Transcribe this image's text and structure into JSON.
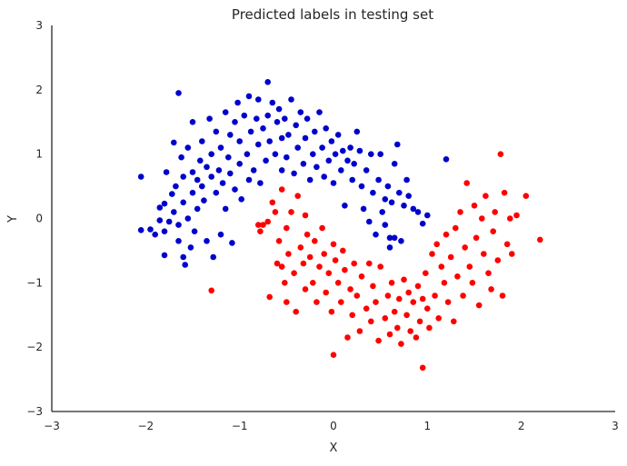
{
  "chart_data": {
    "type": "scatter",
    "title": "Predicted labels in testing set",
    "xlabel": "X",
    "ylabel": "Y",
    "xlim": [
      -3,
      3
    ],
    "ylim": [
      -3,
      3
    ],
    "xticks": [
      "−3",
      "−2",
      "−1",
      "0",
      "1",
      "2",
      "3"
    ],
    "yticks": [
      "−3",
      "−2",
      "−1",
      "0",
      "1",
      "2",
      "3"
    ],
    "grid": false,
    "legend": "none",
    "series": [
      {
        "color": "#0000cc",
        "points": [
          [
            -2.05,
            0.65
          ],
          [
            -2.05,
            -0.18
          ],
          [
            -1.95,
            -0.17
          ],
          [
            -1.9,
            -0.25
          ],
          [
            -1.85,
            0.17
          ],
          [
            -1.85,
            -0.03
          ],
          [
            -1.8,
            0.23
          ],
          [
            -1.8,
            -0.2
          ],
          [
            -1.8,
            -0.57
          ],
          [
            -1.78,
            0.72
          ],
          [
            -1.75,
            -0.05
          ],
          [
            -1.72,
            0.38
          ],
          [
            -1.7,
            0.1
          ],
          [
            -1.7,
            1.18
          ],
          [
            -1.68,
            0.5
          ],
          [
            -1.65,
            -0.35
          ],
          [
            -1.65,
            -0.1
          ],
          [
            -1.65,
            1.95
          ],
          [
            -1.62,
            0.95
          ],
          [
            -1.6,
            0.65
          ],
          [
            -1.6,
            0.25
          ],
          [
            -1.6,
            -0.6
          ],
          [
            -1.58,
            -0.72
          ],
          [
            -1.55,
            1.1
          ],
          [
            -1.55,
            0.0
          ],
          [
            -1.52,
            -0.45
          ],
          [
            -1.5,
            0.72
          ],
          [
            -1.5,
            0.4
          ],
          [
            -1.5,
            1.5
          ],
          [
            -1.48,
            -0.2
          ],
          [
            -1.45,
            0.6
          ],
          [
            -1.45,
            0.15
          ],
          [
            -1.42,
            0.9
          ],
          [
            -1.4,
            0.5
          ],
          [
            -1.4,
            1.2
          ],
          [
            -1.38,
            0.28
          ],
          [
            -1.35,
            0.8
          ],
          [
            -1.35,
            -0.35
          ],
          [
            -1.32,
            1.55
          ],
          [
            -1.3,
            0.65
          ],
          [
            -1.3,
            1.0
          ],
          [
            -1.28,
            -0.6
          ],
          [
            -1.25,
            0.4
          ],
          [
            -1.25,
            1.35
          ],
          [
            -1.22,
            0.75
          ],
          [
            -1.2,
            1.1
          ],
          [
            -1.2,
            -0.25
          ],
          [
            -1.18,
            0.55
          ],
          [
            -1.15,
            1.65
          ],
          [
            -1.15,
            0.15
          ],
          [
            -1.12,
            0.95
          ],
          [
            -1.1,
            1.3
          ],
          [
            -1.1,
            0.7
          ],
          [
            -1.08,
            -0.38
          ],
          [
            -1.05,
            0.45
          ],
          [
            -1.05,
            1.5
          ],
          [
            -1.02,
            1.8
          ],
          [
            -1.0,
            0.85
          ],
          [
            -1.0,
            1.2
          ],
          [
            -0.98,
            0.3
          ],
          [
            -0.95,
            1.6
          ],
          [
            -0.92,
            1.0
          ],
          [
            -0.9,
            1.9
          ],
          [
            -0.9,
            0.6
          ],
          [
            -0.88,
            1.35
          ],
          [
            -0.85,
            0.75
          ],
          [
            -0.82,
            1.55
          ],
          [
            -0.8,
            1.15
          ],
          [
            -0.8,
            1.85
          ],
          [
            -0.78,
            0.55
          ],
          [
            -0.75,
            1.4
          ],
          [
            -0.72,
            0.9
          ],
          [
            -0.7,
            1.6
          ],
          [
            -0.7,
            2.12
          ],
          [
            -0.68,
            1.2
          ],
          [
            -0.65,
            1.8
          ],
          [
            -0.62,
            1.0
          ],
          [
            -0.6,
            1.5
          ],
          [
            -0.58,
            1.7
          ],
          [
            -0.55,
            0.75
          ],
          [
            -0.55,
            1.25
          ],
          [
            -0.52,
            1.55
          ],
          [
            -0.5,
            0.95
          ],
          [
            -0.48,
            1.3
          ],
          [
            -0.45,
            1.85
          ],
          [
            -0.42,
            0.7
          ],
          [
            -0.4,
            1.45
          ],
          [
            -0.38,
            1.1
          ],
          [
            -0.35,
            1.65
          ],
          [
            -0.32,
            0.85
          ],
          [
            -0.3,
            1.25
          ],
          [
            -0.28,
            1.55
          ],
          [
            -0.25,
            0.6
          ],
          [
            -0.22,
            1.0
          ],
          [
            -0.2,
            1.35
          ],
          [
            -0.18,
            0.8
          ],
          [
            -0.15,
            1.65
          ],
          [
            -0.12,
            1.1
          ],
          [
            -0.1,
            0.65
          ],
          [
            -0.08,
            1.4
          ],
          [
            -0.05,
            0.9
          ],
          [
            -0.02,
            1.2
          ],
          [
            0.0,
            0.55
          ],
          [
            0.02,
            1.0
          ],
          [
            0.05,
            1.3
          ],
          [
            0.08,
            0.75
          ],
          [
            0.1,
            1.05
          ],
          [
            0.12,
            0.2
          ],
          [
            0.15,
            0.9
          ],
          [
            0.18,
            1.1
          ],
          [
            0.2,
            0.6
          ],
          [
            0.22,
            0.85
          ],
          [
            0.25,
            1.35
          ],
          [
            0.28,
            1.05
          ],
          [
            0.3,
            0.5
          ],
          [
            0.32,
            0.15
          ],
          [
            0.35,
            0.75
          ],
          [
            0.38,
            -0.05
          ],
          [
            0.4,
            1.0
          ],
          [
            0.42,
            0.4
          ],
          [
            0.45,
            -0.25
          ],
          [
            0.48,
            0.6
          ],
          [
            0.5,
            1.0
          ],
          [
            0.52,
            0.1
          ],
          [
            0.55,
            -0.1
          ],
          [
            0.55,
            0.3
          ],
          [
            0.58,
            0.5
          ],
          [
            0.6,
            -0.45
          ],
          [
            0.6,
            -0.3
          ],
          [
            0.62,
            0.25
          ],
          [
            0.65,
            0.85
          ],
          [
            0.65,
            -0.3
          ],
          [
            0.68,
            1.15
          ],
          [
            0.7,
            0.4
          ],
          [
            0.72,
            -0.35
          ],
          [
            0.75,
            0.2
          ],
          [
            0.78,
            0.6
          ],
          [
            0.8,
            0.35
          ],
          [
            0.85,
            0.15
          ],
          [
            0.9,
            0.1
          ],
          [
            0.95,
            -0.08
          ],
          [
            1.0,
            0.05
          ],
          [
            1.2,
            0.92
          ]
        ]
      },
      {
        "color": "#ff0000",
        "points": [
          [
            -1.3,
            -1.12
          ],
          [
            -0.8,
            -0.1
          ],
          [
            -0.78,
            -0.2
          ],
          [
            -0.75,
            -0.1
          ],
          [
            -0.7,
            -0.05
          ],
          [
            -0.68,
            -1.22
          ],
          [
            -0.65,
            0.25
          ],
          [
            -0.62,
            0.1
          ],
          [
            -0.6,
            -0.7
          ],
          [
            -0.58,
            -0.35
          ],
          [
            -0.55,
            -0.75
          ],
          [
            -0.55,
            0.45
          ],
          [
            -0.52,
            -1.0
          ],
          [
            -0.5,
            -0.15
          ],
          [
            -0.5,
            -1.3
          ],
          [
            -0.48,
            -0.55
          ],
          [
            -0.45,
            0.1
          ],
          [
            -0.42,
            -0.85
          ],
          [
            -0.4,
            -1.45
          ],
          [
            -0.38,
            0.35
          ],
          [
            -0.35,
            -0.45
          ],
          [
            -0.32,
            -0.7
          ],
          [
            -0.3,
            -1.1
          ],
          [
            -0.3,
            0.05
          ],
          [
            -0.28,
            -0.25
          ],
          [
            -0.25,
            -0.6
          ],
          [
            -0.22,
            -1.0
          ],
          [
            -0.2,
            -0.35
          ],
          [
            -0.18,
            -1.3
          ],
          [
            -0.15,
            -0.75
          ],
          [
            -0.12,
            -0.15
          ],
          [
            -0.1,
            -0.55
          ],
          [
            -0.08,
            -1.15
          ],
          [
            -0.05,
            -0.85
          ],
          [
            -0.02,
            -1.45
          ],
          [
            0.0,
            -0.4
          ],
          [
            0.0,
            -2.12
          ],
          [
            0.02,
            -0.65
          ],
          [
            0.05,
            -1.0
          ],
          [
            0.08,
            -1.3
          ],
          [
            0.1,
            -0.5
          ],
          [
            0.12,
            -0.8
          ],
          [
            0.15,
            -1.85
          ],
          [
            0.18,
            -1.1
          ],
          [
            0.2,
            -1.5
          ],
          [
            0.22,
            -0.7
          ],
          [
            0.25,
            -1.2
          ],
          [
            0.28,
            -1.75
          ],
          [
            0.3,
            -0.9
          ],
          [
            0.35,
            -1.4
          ],
          [
            0.38,
            -0.7
          ],
          [
            0.4,
            -1.6
          ],
          [
            0.42,
            -1.05
          ],
          [
            0.45,
            -1.3
          ],
          [
            0.48,
            -1.9
          ],
          [
            0.5,
            -0.75
          ],
          [
            0.55,
            -1.55
          ],
          [
            0.58,
            -1.2
          ],
          [
            0.6,
            -1.8
          ],
          [
            0.62,
            -1.0
          ],
          [
            0.65,
            -1.45
          ],
          [
            0.68,
            -1.7
          ],
          [
            0.7,
            -1.25
          ],
          [
            0.72,
            -1.95
          ],
          [
            0.75,
            -0.95
          ],
          [
            0.78,
            -1.5
          ],
          [
            0.8,
            -1.15
          ],
          [
            0.82,
            -1.75
          ],
          [
            0.85,
            -1.3
          ],
          [
            0.88,
            -1.85
          ],
          [
            0.9,
            -1.05
          ],
          [
            0.92,
            -1.6
          ],
          [
            0.95,
            -1.25
          ],
          [
            0.95,
            -2.32
          ],
          [
            0.98,
            -0.85
          ],
          [
            1.0,
            -1.4
          ],
          [
            1.02,
            -1.7
          ],
          [
            1.05,
            -0.55
          ],
          [
            1.08,
            -1.2
          ],
          [
            1.1,
            -0.4
          ],
          [
            1.12,
            -1.55
          ],
          [
            1.15,
            -0.75
          ],
          [
            1.18,
            -1.0
          ],
          [
            1.2,
            -0.25
          ],
          [
            1.22,
            -1.3
          ],
          [
            1.25,
            -0.6
          ],
          [
            1.28,
            -1.6
          ],
          [
            1.3,
            -0.15
          ],
          [
            1.32,
            -0.9
          ],
          [
            1.35,
            0.1
          ],
          [
            1.38,
            -1.2
          ],
          [
            1.4,
            -0.45
          ],
          [
            1.42,
            0.55
          ],
          [
            1.45,
            -0.75
          ],
          [
            1.48,
            -1.0
          ],
          [
            1.5,
            0.2
          ],
          [
            1.52,
            -0.3
          ],
          [
            1.55,
            -1.35
          ],
          [
            1.58,
            0.0
          ],
          [
            1.6,
            -0.55
          ],
          [
            1.62,
            0.35
          ],
          [
            1.65,
            -0.85
          ],
          [
            1.68,
            -1.1
          ],
          [
            1.7,
            -0.2
          ],
          [
            1.72,
            0.1
          ],
          [
            1.75,
            -0.65
          ],
          [
            1.78,
            1.0
          ],
          [
            1.8,
            -1.2
          ],
          [
            1.82,
            0.4
          ],
          [
            1.85,
            -0.4
          ],
          [
            1.88,
            0.0
          ],
          [
            1.9,
            -0.55
          ],
          [
            1.95,
            0.05
          ],
          [
            2.05,
            0.35
          ],
          [
            2.2,
            -0.33
          ]
        ]
      }
    ]
  }
}
